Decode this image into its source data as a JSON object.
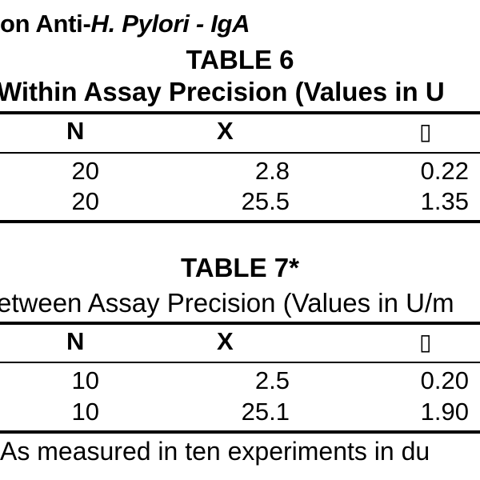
{
  "heading": {
    "prefix": "on Anti-",
    "italic": "H. Pylori - IgA"
  },
  "tables": [
    {
      "title": "TABLE 6",
      "caption": "Within Assay Precision (Values in U",
      "headers": [
        "N",
        "X",
        "▯"
      ],
      "rows": [
        [
          "20",
          "2.8",
          "0.22"
        ],
        [
          "20",
          "25.5",
          "1.35"
        ]
      ]
    },
    {
      "title": "TABLE 7*",
      "caption": "etween Assay Precision (Values in U/m",
      "headers": [
        "N",
        "X",
        "▯"
      ],
      "rows": [
        [
          "10",
          "2.5",
          "0.20"
        ],
        [
          "10",
          "25.1",
          "1.90"
        ]
      ]
    }
  ],
  "footnote": "As measured in ten experiments in du"
}
